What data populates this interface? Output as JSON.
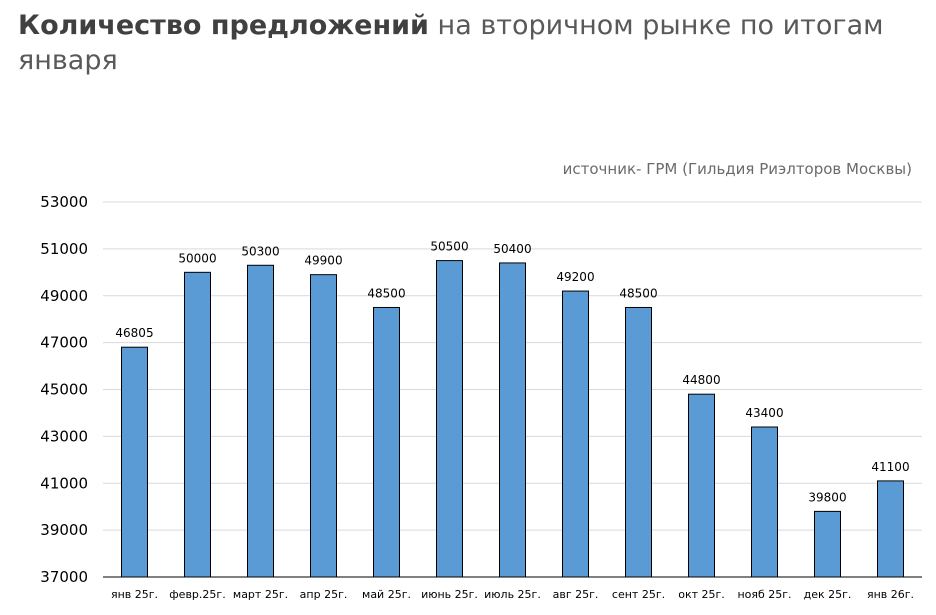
{
  "header": {
    "title_bold": "Количество предложений",
    "title_rest": " на вторичном рынке по итогам января",
    "source": "источник- ГРМ (Гильдия Риэлторов Москвы)"
  },
  "colors": {
    "bar": "#5b9bd5",
    "grid": "#d9d9d9"
  },
  "chart_data": {
    "type": "bar",
    "categories": [
      "янв 25г.",
      "февр.25г.",
      "март 25г.",
      "апр 25г.",
      "май 25г.",
      "июнь 25г.",
      "июль 25г.",
      "авг 25г.",
      "сент 25г.",
      "окт 25г.",
      "нояб 25г.",
      "дек 25г.",
      "янв 26г."
    ],
    "series": [
      {
        "values": [
          46805,
          50000,
          50300,
          49900,
          48500,
          50500,
          50400,
          49200,
          48500,
          44800,
          43400,
          39800,
          41100
        ]
      }
    ],
    "data_labels": [
      "46805",
      "50000",
      "50300",
      "49900",
      "48500",
      "50500",
      "50400",
      "49200",
      "48500",
      "44800",
      "43400",
      "39800",
      "41100"
    ],
    "yticks": [
      "37000",
      "39000",
      "41000",
      "43000",
      "45000",
      "47000",
      "49000",
      "51000",
      "53000"
    ],
    "ylim": [
      37000,
      53000
    ],
    "grid": true,
    "legend": "none"
  }
}
